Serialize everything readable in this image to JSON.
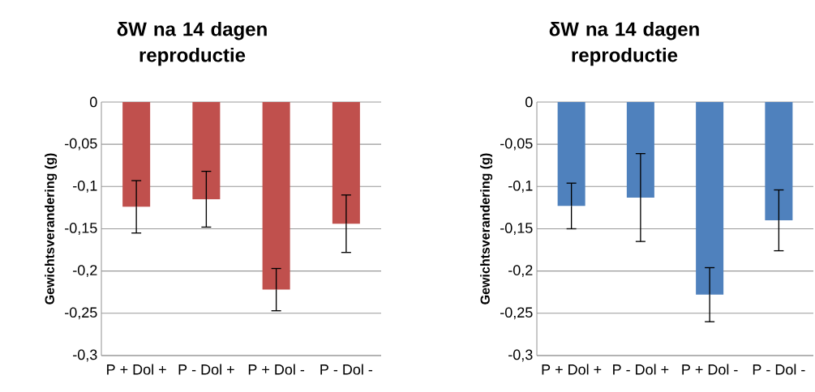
{
  "chart_data": [
    {
      "type": "bar",
      "title": "δW na 14 dagen reproductie",
      "ylabel": "Gewichtsverandering (g)",
      "categories": [
        "P + Dol +",
        "P - Dol +",
        "P + Dol -",
        "P - Dol -"
      ],
      "values": [
        -0.124,
        -0.115,
        -0.222,
        -0.144
      ],
      "errors": [
        0.031,
        0.033,
        0.025,
        0.034
      ],
      "color": "#c0504d",
      "ylim": [
        -0.3,
        0
      ],
      "yticks": [
        {
          "value": -0.3,
          "label": "-0,3"
        },
        {
          "value": -0.25,
          "label": "-0,25"
        },
        {
          "value": -0.2,
          "label": "-0,2"
        },
        {
          "value": -0.15,
          "label": "-0,15"
        },
        {
          "value": -0.1,
          "label": "-0,1"
        },
        {
          "value": -0.05,
          "label": "-0,05"
        },
        0
      ],
      "grid": "y"
    },
    {
      "type": "bar",
      "title": "δW na 14 dagen reproductie",
      "ylabel": "Gewichtsverandering (g)",
      "categories": [
        "P + Dol +",
        "P - Dol +",
        "P + Dol -",
        "P - Dol -"
      ],
      "values": [
        -0.123,
        -0.113,
        -0.228,
        -0.14
      ],
      "errors": [
        0.027,
        0.052,
        0.032,
        0.036
      ],
      "color": "#4f81bd",
      "ylim": [
        -0.3,
        0
      ],
      "yticks": [
        {
          "value": -0.3,
          "label": "-0,3"
        },
        {
          "value": -0.25,
          "label": "-0,25"
        },
        {
          "value": -0.2,
          "label": "-0,2"
        },
        {
          "value": -0.15,
          "label": "-0,15"
        },
        {
          "value": -0.1,
          "label": "-0,1"
        },
        {
          "value": -0.05,
          "label": "-0,05"
        },
        0
      ],
      "grid": "y"
    }
  ]
}
